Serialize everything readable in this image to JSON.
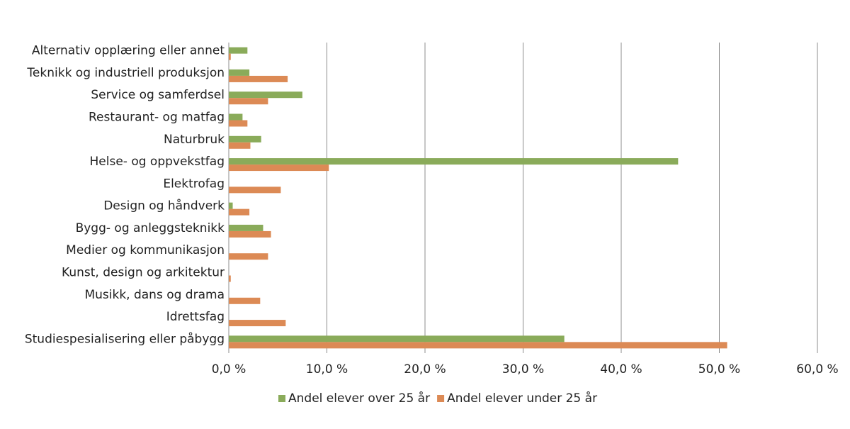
{
  "chart_data": {
    "type": "hbar",
    "categories": [
      "Alternativ opplæring eller annet",
      "Teknikk og industriell produksjon",
      "Service og samferdsel",
      "Restaurant- og matfag",
      "Naturbruk",
      "Helse- og oppvekstfag",
      "Elektrofag",
      "Design og håndverk",
      "Bygg- og anleggsteknikk",
      "Medier og kommunikasjon",
      "Kunst, design og arkitektur",
      "Musikk, dans og drama",
      "Idrettsfag",
      "Studiespesialisering eller påbygg"
    ],
    "series": [
      {
        "name": "Andel elever over 25 år",
        "color": "#8aab5a",
        "values": [
          1.9,
          2.1,
          7.5,
          1.4,
          3.3,
          45.8,
          0,
          0.4,
          3.5,
          0,
          0,
          0,
          0,
          34.2
        ]
      },
      {
        "name": "Andel elever under 25 år",
        "color": "#dc8a55",
        "values": [
          0.2,
          6.0,
          4.0,
          1.9,
          2.2,
          10.2,
          5.3,
          2.1,
          4.3,
          4.0,
          0.2,
          3.2,
          5.8,
          50.8
        ]
      }
    ],
    "xlim": [
      0,
      60
    ],
    "xticks": [
      {
        "value": 0,
        "label": "0,0 %"
      },
      {
        "value": 10,
        "label": "10,0 %"
      },
      {
        "value": 20,
        "label": "20,0 %"
      },
      {
        "value": 30,
        "label": "30,0 %"
      },
      {
        "value": 40,
        "label": "40,0 %"
      },
      {
        "value": 50,
        "label": "50,0 %"
      },
      {
        "value": 60,
        "label": "60,0 %"
      }
    ],
    "grid": true,
    "legend": "bottom"
  }
}
